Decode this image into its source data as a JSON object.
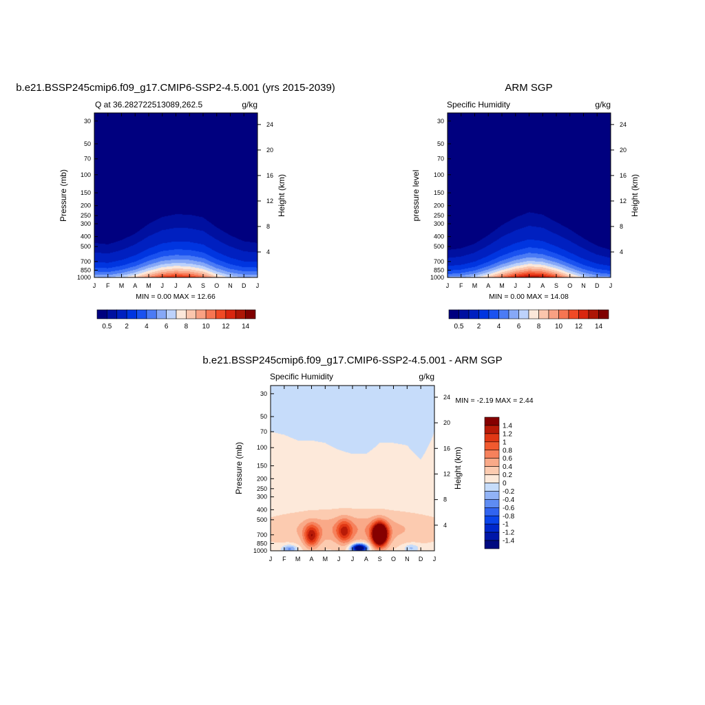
{
  "chart_data": [
    {
      "type": "contour",
      "title": "b.e21.BSSP245cmip6.f09_g17.CMIP6-SSP2-4.5.001 (yrs 2015-2039)",
      "left_label": "Q at 36.282722513089,262.5",
      "right_label": "g/kg",
      "ylabel": "Pressure (mb)",
      "ylabel_right": "Height (km)",
      "x_ticks": [
        "J",
        "F",
        "M",
        "A",
        "M",
        "J",
        "J",
        "A",
        "S",
        "O",
        "N",
        "D",
        "J"
      ],
      "y_ticks": [
        30,
        50,
        70,
        100,
        150,
        200,
        250,
        300,
        400,
        500,
        700,
        850,
        1000
      ],
      "height_ticks": [
        4,
        8,
        12,
        16,
        20,
        24
      ],
      "ylim": [
        1000,
        25
      ],
      "y_scale": "log",
      "stats": "MIN =   0.00 MAX =  12.66",
      "colorbar_labels": [
        "0.5",
        "2",
        "4",
        "6",
        "8",
        "10",
        "12",
        "14"
      ],
      "levels": [
        0.5,
        1,
        2,
        3,
        4,
        5,
        6,
        7,
        8,
        9,
        10,
        11,
        12,
        13,
        14
      ],
      "surface_q": [
        6.2,
        6.0,
        6.8,
        8.2,
        10.2,
        12.0,
        12.66,
        12.2,
        10.8,
        8.4,
        6.8,
        6.1,
        6.2
      ],
      "moist_top_mb": [
        450,
        460,
        435,
        400,
        355,
        330,
        320,
        318,
        320,
        355,
        390,
        430,
        450
      ]
    },
    {
      "type": "contour",
      "title": "ARM SGP",
      "left_label": "Specific Humidity",
      "right_label": "g/kg",
      "ylabel": "pressure level",
      "ylabel_right": "Height (km)",
      "x_ticks": [
        "J",
        "F",
        "M",
        "A",
        "M",
        "J",
        "J",
        "A",
        "S",
        "O",
        "N",
        "D",
        "J"
      ],
      "y_ticks": [
        30,
        50,
        70,
        100,
        150,
        200,
        250,
        300,
        400,
        500,
        700,
        850,
        1000
      ],
      "height_ticks": [
        4,
        8,
        12,
        16,
        20,
        24
      ],
      "ylim": [
        1000,
        25
      ],
      "y_scale": "log",
      "stats": "MIN =   0.00 MAX =  14.08",
      "colorbar_labels": [
        "0.5",
        "2",
        "4",
        "6",
        "8",
        "10",
        "12",
        "14"
      ],
      "levels": [
        0.5,
        1,
        2,
        3,
        4,
        5,
        6,
        7,
        8,
        9,
        10,
        11,
        12,
        13,
        14
      ],
      "surface_q": [
        5.4,
        5.8,
        6.8,
        8.6,
        10.8,
        12.8,
        14.08,
        13.6,
        11.8,
        9.0,
        7.0,
        5.8,
        5.4
      ],
      "moist_top_mb": [
        510,
        500,
        470,
        420,
        370,
        340,
        320,
        330,
        360,
        380,
        420,
        470,
        510
      ]
    },
    {
      "type": "contour",
      "title": "b.e21.BSSP245cmip6.f09_g17.CMIP6-SSP2-4.5.001 - ARM SGP",
      "left_label": "Specific Humidity",
      "right_label": "g/kg",
      "ylabel": "Pressure (mb)",
      "ylabel_right": "Height (km)",
      "x_ticks": [
        "J",
        "F",
        "M",
        "A",
        "M",
        "J",
        "J",
        "A",
        "S",
        "O",
        "N",
        "D",
        "J"
      ],
      "y_ticks": [
        30,
        50,
        70,
        100,
        150,
        200,
        250,
        300,
        400,
        500,
        700,
        850,
        1000
      ],
      "height_ticks": [
        4,
        8,
        12,
        16,
        20,
        24
      ],
      "ylim": [
        1000,
        25
      ],
      "y_scale": "log",
      "stats": "MIN =  -2.19 MAX =   2.44",
      "colorbar_labels": [
        "1.4",
        "1.2",
        "1",
        "0.8",
        "0.6",
        "0.4",
        "0.2",
        "0",
        "-0.2",
        "-0.4",
        "-0.6",
        "-0.8",
        "-1",
        "-1.2",
        "-1.4"
      ],
      "levels": [
        -1.4,
        -1.2,
        -1,
        -0.8,
        -0.6,
        -0.4,
        -0.2,
        0,
        0.2,
        0.4,
        0.6,
        0.8,
        1,
        1.2,
        1.4
      ],
      "zero_line_mb": [
        70,
        75,
        85,
        85,
        90,
        105,
        115,
        115,
        90,
        90,
        95,
        130,
        70
      ],
      "anomalies": [
        {
          "month": 3.0,
          "p_mb": 720,
          "value": 1.0
        },
        {
          "month": 5.4,
          "p_mb": 650,
          "value": 0.8
        },
        {
          "month": 8.0,
          "p_mb": 700,
          "value": 2.44
        },
        {
          "month": 6.5,
          "p_mb": 940,
          "value": -2.19
        },
        {
          "month": 1.4,
          "p_mb": 960,
          "value": -0.6
        },
        {
          "month": 10.3,
          "p_mb": 940,
          "value": -0.4
        }
      ]
    }
  ],
  "colors": {
    "positive_scale": [
      "#00007f",
      "#0010a0",
      "#0020c0",
      "#0035e0",
      "#1a52f0",
      "#4b7bf5",
      "#86a8f7",
      "#bdd2fb",
      "#fce8da",
      "#fbc6ad",
      "#f9a183",
      "#f67552",
      "#f04a25",
      "#d9260f",
      "#ad1606",
      "#7f0000"
    ],
    "diff_scale": [
      "#000a80",
      "#0017a8",
      "#0028cc",
      "#0a44ea",
      "#3164f0",
      "#5e8cf3",
      "#91b3f6",
      "#c6dcfa",
      "#fde9da",
      "#fccbb0",
      "#f9a988",
      "#f6815c",
      "#f15a2f",
      "#e03714",
      "#b81a07",
      "#850000"
    ]
  }
}
